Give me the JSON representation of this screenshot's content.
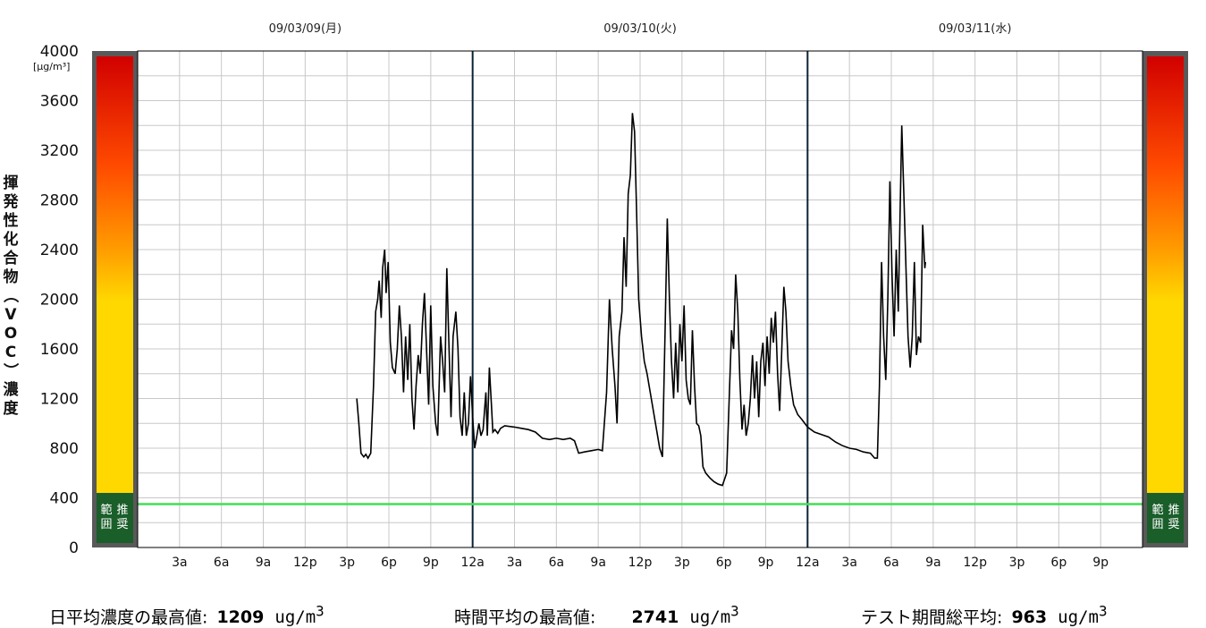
{
  "chart_data": {
    "type": "line",
    "y_unit": "[μg/m³]",
    "ylabel": "揮発性化合物（VOC）濃度",
    "ylim": [
      0,
      4000
    ],
    "yticks": [
      0,
      400,
      800,
      1200,
      1600,
      2000,
      2400,
      2800,
      3200,
      3600,
      4000
    ],
    "date_labels": [
      "09/03/09(月)",
      "09/03/10(火)",
      "09/03/11(水)"
    ],
    "x_tick_labels": [
      "3a",
      "6a",
      "9a",
      "12p",
      "3p",
      "6p",
      "9p",
      "12a",
      "3a",
      "6a",
      "9a",
      "12p",
      "3p",
      "6p",
      "9p",
      "12a",
      "3a",
      "6a",
      "9a",
      "12p",
      "3p",
      "6p",
      "9p"
    ],
    "xlim_hours": [
      0,
      72
    ],
    "recommended_range_label": "推奨範囲",
    "threshold": {
      "value": 350,
      "color": "#44dd55"
    },
    "day_divider_hours": [
      24,
      48
    ],
    "gradient_colors": [
      "#1a5e2a",
      "#ffd800",
      "#ff9b00",
      "#ff4a00",
      "#d10000"
    ],
    "series": [
      {
        "color": "#000000",
        "points": [
          [
            15.7,
            1200
          ],
          [
            15.85,
            1000
          ],
          [
            16.0,
            760
          ],
          [
            16.2,
            730
          ],
          [
            16.35,
            750
          ],
          [
            16.5,
            720
          ],
          [
            16.7,
            760
          ],
          [
            16.9,
            1300
          ],
          [
            17.05,
            1900
          ],
          [
            17.2,
            2000
          ],
          [
            17.3,
            2150
          ],
          [
            17.45,
            1850
          ],
          [
            17.55,
            2250
          ],
          [
            17.7,
            2400
          ],
          [
            17.8,
            2050
          ],
          [
            17.95,
            2300
          ],
          [
            18.1,
            1650
          ],
          [
            18.25,
            1450
          ],
          [
            18.45,
            1400
          ],
          [
            18.6,
            1600
          ],
          [
            18.75,
            1950
          ],
          [
            18.9,
            1700
          ],
          [
            19.05,
            1250
          ],
          [
            19.2,
            1700
          ],
          [
            19.35,
            1350
          ],
          [
            19.5,
            1800
          ],
          [
            19.65,
            1200
          ],
          [
            19.8,
            950
          ],
          [
            19.95,
            1300
          ],
          [
            20.1,
            1550
          ],
          [
            20.25,
            1400
          ],
          [
            20.4,
            1800
          ],
          [
            20.55,
            2050
          ],
          [
            20.7,
            1600
          ],
          [
            20.85,
            1150
          ],
          [
            21.0,
            1950
          ],
          [
            21.15,
            1300
          ],
          [
            21.35,
            1000
          ],
          [
            21.5,
            900
          ],
          [
            21.7,
            1700
          ],
          [
            21.85,
            1500
          ],
          [
            22.0,
            1250
          ],
          [
            22.15,
            2250
          ],
          [
            22.3,
            1650
          ],
          [
            22.45,
            1050
          ],
          [
            22.6,
            1700
          ],
          [
            22.8,
            1900
          ],
          [
            22.95,
            1600
          ],
          [
            23.1,
            1050
          ],
          [
            23.25,
            900
          ],
          [
            23.4,
            1250
          ],
          [
            23.55,
            900
          ],
          [
            23.7,
            1000
          ],
          [
            23.85,
            1380
          ],
          [
            24.0,
            1050
          ],
          [
            24.15,
            800
          ],
          [
            24.3,
            900
          ],
          [
            24.45,
            1000
          ],
          [
            24.6,
            900
          ],
          [
            24.75,
            950
          ],
          [
            24.95,
            1250
          ],
          [
            25.05,
            900
          ],
          [
            25.2,
            1450
          ],
          [
            25.35,
            1150
          ],
          [
            25.45,
            930
          ],
          [
            25.6,
            950
          ],
          [
            25.8,
            920
          ],
          [
            26.0,
            960
          ],
          [
            26.3,
            980
          ],
          [
            27.0,
            970
          ],
          [
            27.5,
            960
          ],
          [
            28.0,
            950
          ],
          [
            28.5,
            930
          ],
          [
            29.0,
            880
          ],
          [
            29.5,
            870
          ],
          [
            30.0,
            880
          ],
          [
            30.5,
            870
          ],
          [
            31.0,
            880
          ],
          [
            31.3,
            860
          ],
          [
            31.6,
            760
          ],
          [
            32.0,
            770
          ],
          [
            32.5,
            780
          ],
          [
            33.0,
            790
          ],
          [
            33.3,
            780
          ],
          [
            33.6,
            1250
          ],
          [
            33.8,
            2000
          ],
          [
            34.0,
            1600
          ],
          [
            34.2,
            1300
          ],
          [
            34.35,
            1000
          ],
          [
            34.5,
            1700
          ],
          [
            34.7,
            1900
          ],
          [
            34.85,
            2500
          ],
          [
            35.0,
            2100
          ],
          [
            35.15,
            2850
          ],
          [
            35.3,
            3000
          ],
          [
            35.45,
            3500
          ],
          [
            35.6,
            3350
          ],
          [
            35.75,
            2700
          ],
          [
            35.9,
            2000
          ],
          [
            36.1,
            1700
          ],
          [
            36.3,
            1500
          ],
          [
            36.5,
            1400
          ],
          [
            36.8,
            1200
          ],
          [
            37.1,
            1000
          ],
          [
            37.4,
            800
          ],
          [
            37.6,
            730
          ],
          [
            37.8,
            1800
          ],
          [
            37.95,
            2650
          ],
          [
            38.1,
            2000
          ],
          [
            38.25,
            1500
          ],
          [
            38.4,
            1200
          ],
          [
            38.55,
            1650
          ],
          [
            38.7,
            1250
          ],
          [
            38.85,
            1800
          ],
          [
            39.0,
            1500
          ],
          [
            39.15,
            1950
          ],
          [
            39.3,
            1350
          ],
          [
            39.45,
            1200
          ],
          [
            39.6,
            1150
          ],
          [
            39.75,
            1750
          ],
          [
            39.9,
            1300
          ],
          [
            40.05,
            1000
          ],
          [
            40.2,
            980
          ],
          [
            40.35,
            900
          ],
          [
            40.5,
            650
          ],
          [
            40.7,
            600
          ],
          [
            41.0,
            560
          ],
          [
            41.3,
            530
          ],
          [
            41.6,
            510
          ],
          [
            41.9,
            500
          ],
          [
            42.2,
            600
          ],
          [
            42.4,
            1250
          ],
          [
            42.55,
            1750
          ],
          [
            42.7,
            1600
          ],
          [
            42.85,
            2200
          ],
          [
            43.0,
            1900
          ],
          [
            43.15,
            1350
          ],
          [
            43.3,
            950
          ],
          [
            43.45,
            1150
          ],
          [
            43.6,
            900
          ],
          [
            43.75,
            1000
          ],
          [
            43.9,
            1200
          ],
          [
            44.05,
            1550
          ],
          [
            44.2,
            1200
          ],
          [
            44.35,
            1500
          ],
          [
            44.5,
            1050
          ],
          [
            44.65,
            1500
          ],
          [
            44.8,
            1650
          ],
          [
            44.95,
            1300
          ],
          [
            45.1,
            1700
          ],
          [
            45.25,
            1400
          ],
          [
            45.4,
            1850
          ],
          [
            45.55,
            1650
          ],
          [
            45.7,
            1900
          ],
          [
            45.85,
            1400
          ],
          [
            46.0,
            1100
          ],
          [
            46.15,
            1600
          ],
          [
            46.3,
            2100
          ],
          [
            46.45,
            1900
          ],
          [
            46.6,
            1500
          ],
          [
            46.8,
            1300
          ],
          [
            47.0,
            1150
          ],
          [
            47.3,
            1070
          ],
          [
            47.6,
            1030
          ],
          [
            48.0,
            970
          ],
          [
            48.5,
            930
          ],
          [
            49.0,
            910
          ],
          [
            49.5,
            890
          ],
          [
            50.0,
            850
          ],
          [
            50.5,
            820
          ],
          [
            51.0,
            800
          ],
          [
            51.5,
            790
          ],
          [
            52.0,
            770
          ],
          [
            52.5,
            760
          ],
          [
            52.8,
            720
          ],
          [
            53.0,
            720
          ],
          [
            53.15,
            1300
          ],
          [
            53.3,
            2300
          ],
          [
            53.45,
            1700
          ],
          [
            53.6,
            1350
          ],
          [
            53.75,
            2000
          ],
          [
            53.9,
            2950
          ],
          [
            54.05,
            2200
          ],
          [
            54.2,
            1700
          ],
          [
            54.35,
            2400
          ],
          [
            54.5,
            1900
          ],
          [
            54.65,
            2800
          ],
          [
            54.75,
            3400
          ],
          [
            54.9,
            2850
          ],
          [
            55.05,
            2250
          ],
          [
            55.2,
            1700
          ],
          [
            55.35,
            1450
          ],
          [
            55.5,
            1700
          ],
          [
            55.65,
            2300
          ],
          [
            55.8,
            1550
          ],
          [
            55.95,
            1700
          ],
          [
            56.1,
            1650
          ],
          [
            56.25,
            2600
          ],
          [
            56.4,
            2250
          ],
          [
            56.45,
            2300
          ]
        ]
      }
    ]
  },
  "footer": {
    "daily_max_label": "日平均濃度の最高値:",
    "daily_max_value": "1209",
    "hourly_max_label": "時間平均の最高値:",
    "hourly_max_value": "2741",
    "total_avg_label": "テスト期間総平均:",
    "total_avg_value": "963",
    "unit_text": "ug/m",
    "unit_sup": "3"
  }
}
